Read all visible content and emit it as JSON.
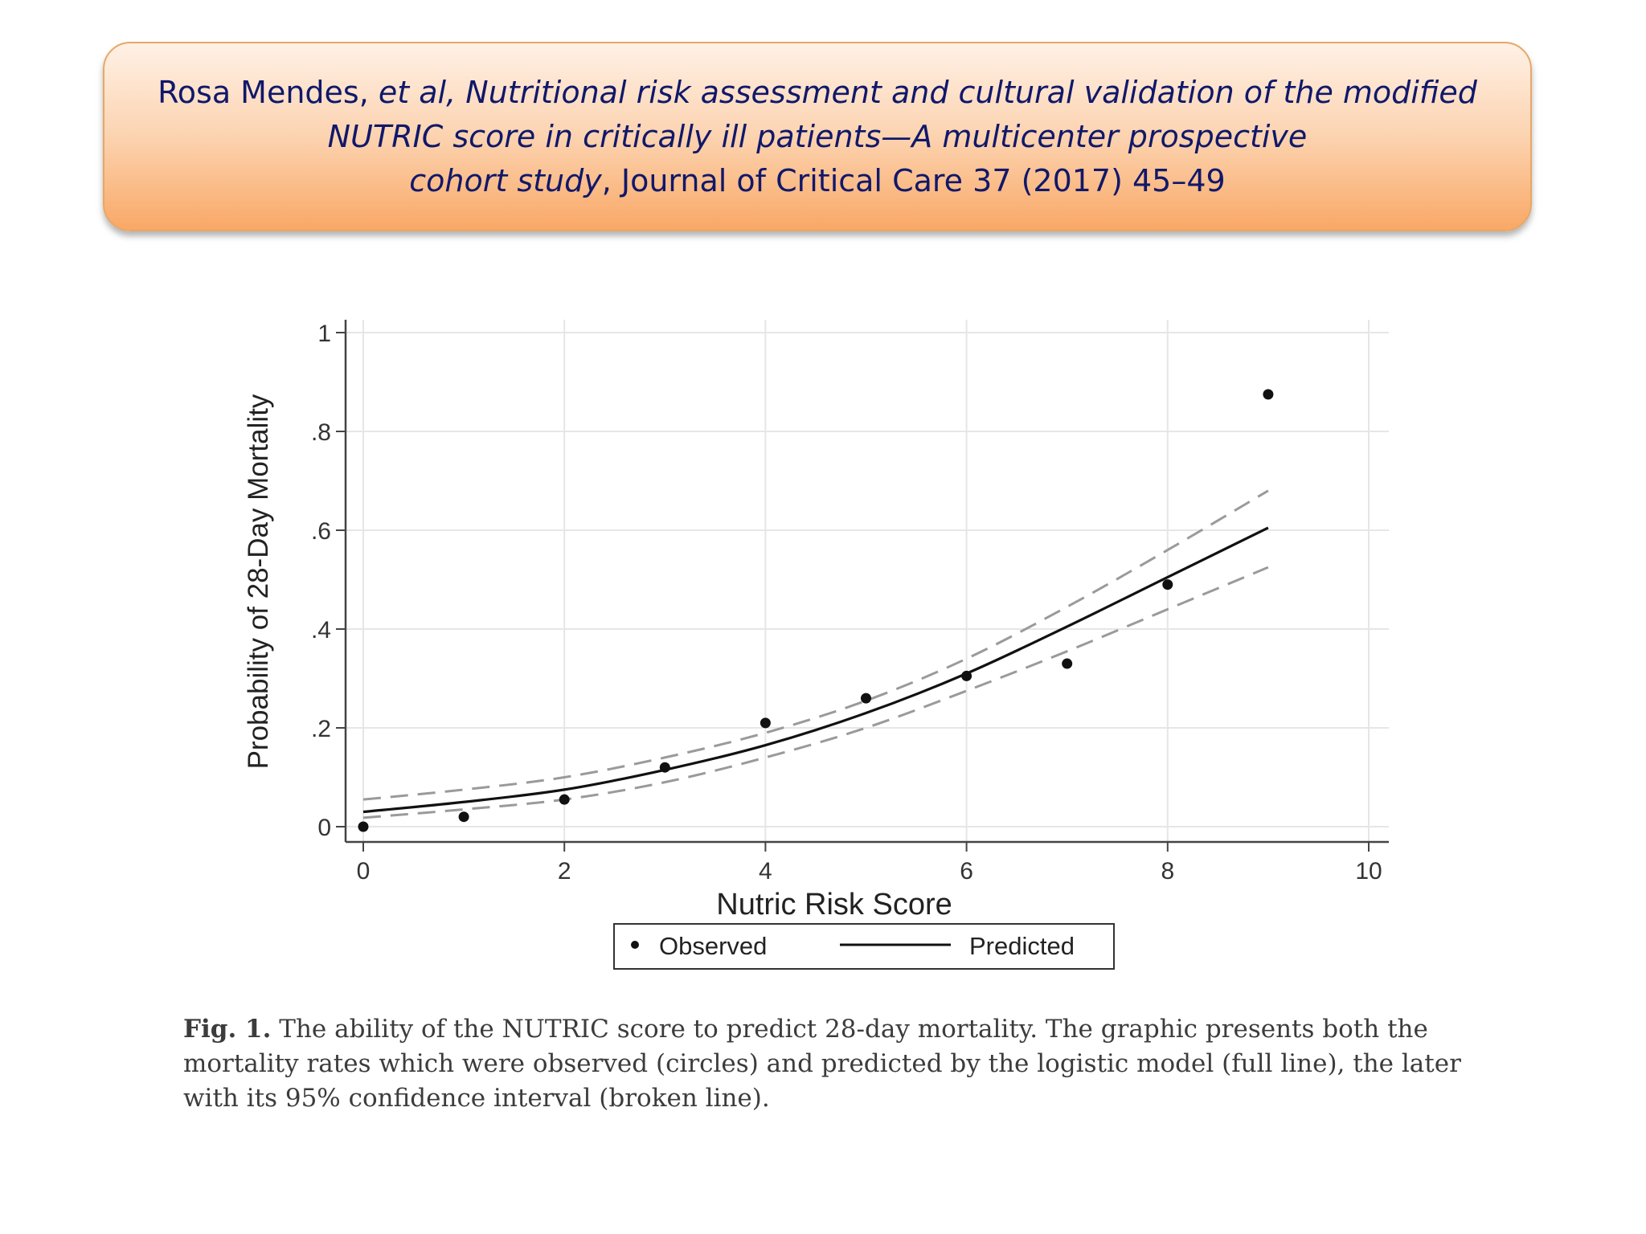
{
  "citation": {
    "authors": "Rosa Mendes, ",
    "et_al": "et al",
    "comma": ", ",
    "title_line1": "Nutritional risk assessment and cultural validation of the modified",
    "title_line2": "NUTRIC score in critically ill patients—A multicenter prospective",
    "title_line3": "cohort study",
    "journal": ", Journal of Critical Care 37 (2017) 45–49"
  },
  "caption": {
    "fig_label": "Fig. 1.",
    "text": " The ability of the NUTRIC score to predict 28-day mortality. The graphic presents both the mortality rates which were observed (circles) and predicted by the logistic model (full line), the later with its 95% confidence interval (broken line)."
  },
  "chart_data": {
    "type": "scatter",
    "xlabel": "Nutric Risk Score",
    "ylabel": "Probability of 28-Day Mortality",
    "xlim": [
      0,
      10
    ],
    "ylim": [
      0,
      1
    ],
    "x_ticks": [
      0,
      2,
      4,
      6,
      8,
      10
    ],
    "x_tick_labels": [
      "0",
      "2",
      "4",
      "6",
      "8",
      "10"
    ],
    "y_ticks": [
      0,
      0.2,
      0.4,
      0.6,
      0.8,
      1
    ],
    "y_tick_labels": [
      "0",
      ".2",
      ".4",
      ".6",
      ".8",
      "1"
    ],
    "grid": true,
    "legend_position": "bottom",
    "series": [
      {
        "name": "Observed",
        "kind": "points",
        "x": [
          0,
          1,
          2,
          3,
          4,
          5,
          6,
          7,
          8,
          9
        ],
        "y": [
          0.0,
          0.02,
          0.055,
          0.12,
          0.21,
          0.26,
          0.305,
          0.33,
          0.49,
          0.875
        ]
      },
      {
        "name": "Predicted",
        "kind": "line",
        "x": [
          0,
          1,
          2,
          3,
          4,
          5,
          6,
          7,
          8,
          9
        ],
        "y": [
          0.03,
          0.05,
          0.075,
          0.115,
          0.165,
          0.23,
          0.31,
          0.405,
          0.505,
          0.605
        ]
      },
      {
        "name": "95% CI upper",
        "kind": "dashed",
        "x": [
          0,
          1,
          2,
          3,
          4,
          5,
          6,
          7,
          8,
          9
        ],
        "y": [
          0.055,
          0.075,
          0.1,
          0.14,
          0.19,
          0.255,
          0.34,
          0.445,
          0.56,
          0.68
        ]
      },
      {
        "name": "95% CI lower",
        "kind": "dashed",
        "x": [
          0,
          1,
          2,
          3,
          4,
          5,
          6,
          7,
          8,
          9
        ],
        "y": [
          0.018,
          0.035,
          0.055,
          0.09,
          0.14,
          0.2,
          0.275,
          0.355,
          0.44,
          0.525
        ]
      }
    ]
  }
}
